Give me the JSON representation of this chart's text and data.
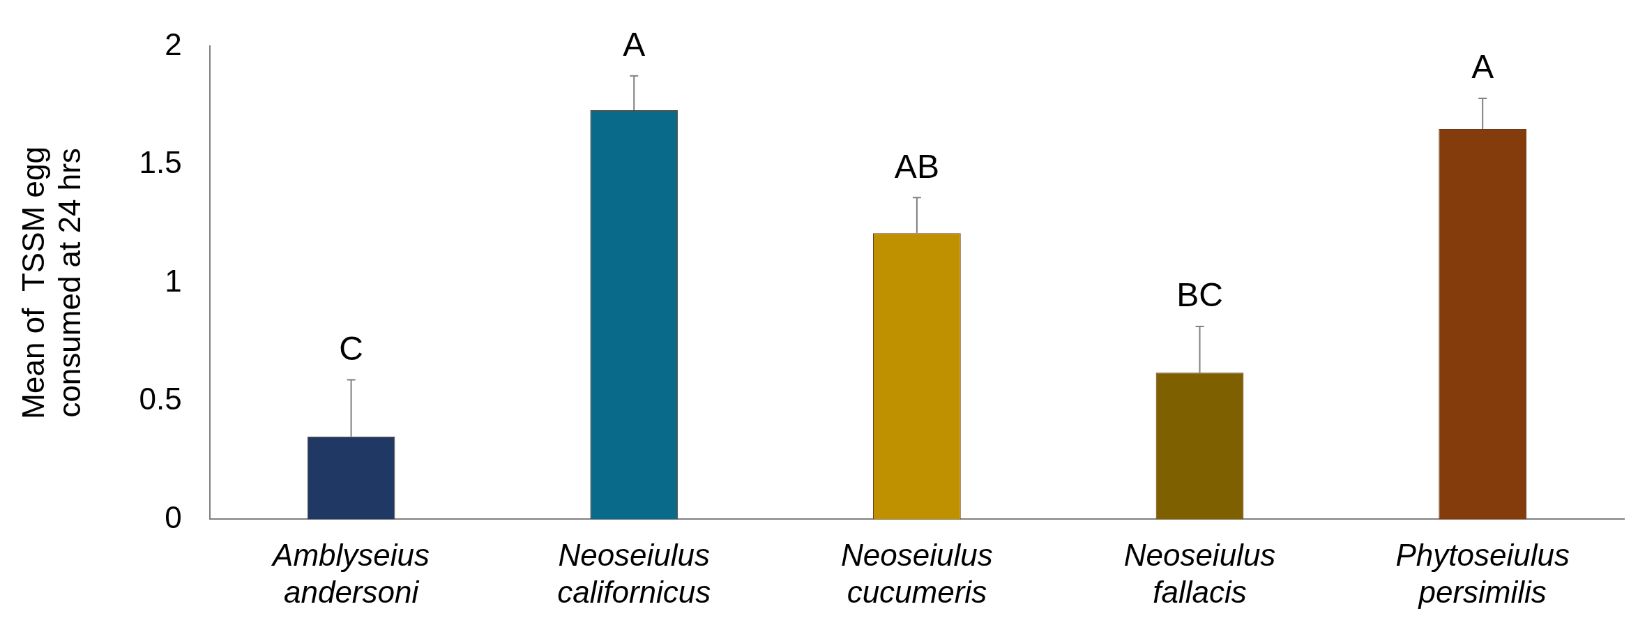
{
  "chart_data": {
    "type": "bar",
    "ylabel": "Mean of  TSSM egg consumed at 24 hrs",
    "categories": [
      "Amblyseius andersoni",
      "Neoseiulus californicus",
      "Neoseiulus cucumeris",
      "Neoseiulus fallacis",
      "Phytoseiulus persimilis"
    ],
    "values": [
      0.35,
      1.73,
      1.21,
      0.62,
      1.65
    ],
    "colors": [
      "#1f3864",
      "#0a6a8a",
      "#bf9000",
      "#7f6000",
      "#843c0c"
    ],
    "errors": [
      [
        0.35,
        0.59
      ],
      [
        1.73,
        1.875
      ],
      [
        1.21,
        1.36
      ],
      [
        0.62,
        0.815
      ],
      [
        1.65,
        1.78
      ]
    ],
    "ylim": [
      0,
      2
    ],
    "yticks": [
      0,
      0.5,
      1,
      1.5,
      2
    ],
    "grid": false,
    "legend": false,
    "annotations": [
      {
        "text": "C",
        "x": "Amblyseius andersoni",
        "y": 0.59
      },
      {
        "text": "A",
        "x": "Neoseiulus californicus",
        "y": 1.875
      },
      {
        "text": "AB",
        "x": "Neoseiulus cucumeris",
        "y": 1.36
      },
      {
        "text": "BC",
        "x": "Neoseiulus fallacis",
        "y": 0.815
      },
      {
        "text": "A",
        "x": "Phytoseiulus persimilis",
        "y": 1.78
      }
    ]
  }
}
